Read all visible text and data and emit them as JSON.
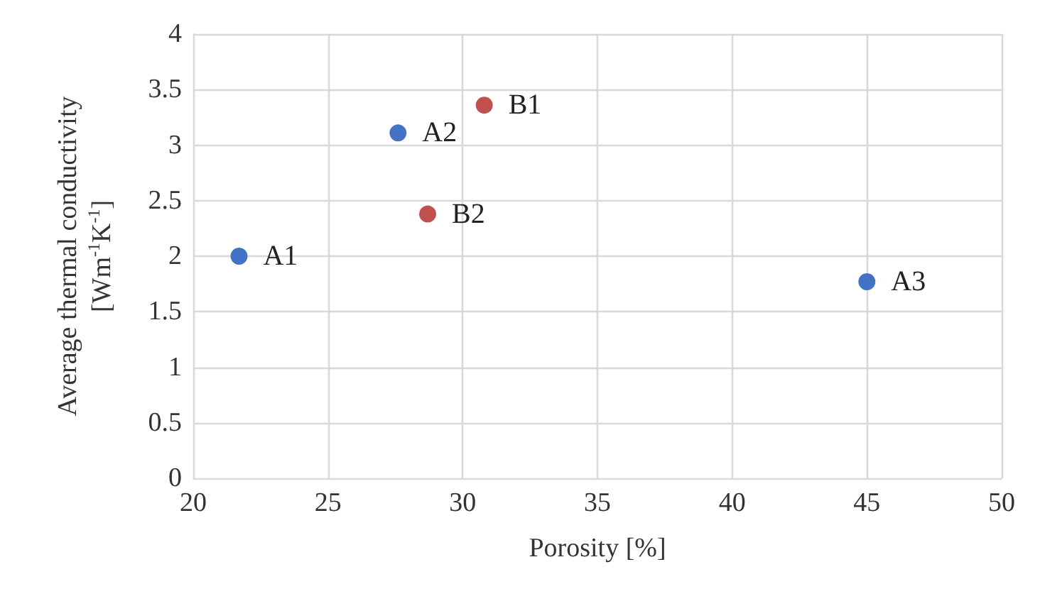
{
  "chart_data": {
    "type": "scatter",
    "xlabel": "Porosity [%]",
    "ylabel": "Average thermal conductivity\n[Wm$^{-1}$K$^{-1}$]",
    "series": [
      {
        "color": "#4472c4",
        "x": [
          21.7,
          27.6,
          45.0
        ],
        "values": [
          2.0,
          3.11,
          1.77
        ]
      },
      {
        "color": "#c0504d",
        "x": [
          30.8,
          28.7
        ],
        "values": [
          3.36,
          2.38
        ]
      }
    ],
    "annotations": [
      {
        "text": "A1",
        "x": 21.7,
        "y": 2.0
      },
      {
        "text": "A2",
        "x": 27.6,
        "y": 3.11
      },
      {
        "text": "A3",
        "x": 45.0,
        "y": 1.77
      },
      {
        "text": "B1",
        "x": 30.8,
        "y": 3.36
      },
      {
        "text": "B2",
        "x": 28.7,
        "y": 2.38
      }
    ],
    "xlim": [
      20,
      50
    ],
    "xticks": [
      20,
      25,
      30,
      35,
      40,
      45,
      50
    ],
    "ylim": [
      0,
      4
    ],
    "yticks": [
      0,
      0.5,
      1,
      1.5,
      2,
      2.5,
      3,
      3.5,
      4
    ],
    "grid": true,
    "marker": "circle"
  }
}
